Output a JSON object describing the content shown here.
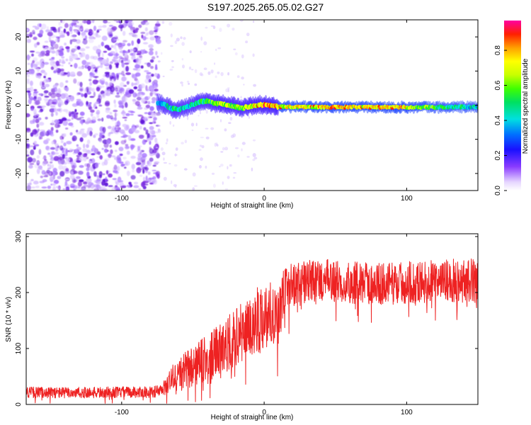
{
  "figure": {
    "title": "S197.2025.265.05.02.G27"
  },
  "colors": {
    "snr_line": "#ee2222",
    "frame": "#000000",
    "noise_dots": "#7a2ae0"
  },
  "chart_data": [
    {
      "type": "heatmap",
      "name": "spectrogram",
      "title": "S197.2025.265.05.02.G27",
      "xlabel": "Height of straight line (km)",
      "ylabel": "Frequency (Hz)",
      "xlim": [
        -167,
        150
      ],
      "ylim": [
        -25,
        25
      ],
      "xticks": [
        -100,
        0,
        100
      ],
      "xtick_labels": [
        "-100",
        "0",
        "100"
      ],
      "yticks": [
        -20,
        -10,
        0,
        10,
        20
      ],
      "ytick_labels": [
        "-20",
        "-10",
        "0",
        "10",
        "20"
      ],
      "colorbar": {
        "label": "Normalized spectral amplitude",
        "range": [
          0,
          0.97
        ],
        "ticks": [
          0.0,
          0.2,
          0.4,
          0.6,
          0.8
        ],
        "tick_labels": [
          "0.0",
          "0.2",
          "0.4",
          "0.6",
          "0.8"
        ]
      },
      "noise_region": {
        "x_from": -167,
        "x_to": -76,
        "freq_from": -25,
        "freq_to": 25
      },
      "signal_track": {
        "description": "dominant frequency ridge",
        "x": [
          -75,
          -70,
          -65,
          -60,
          -55,
          -50,
          -45,
          -40,
          -35,
          -30,
          -25,
          -20,
          -15,
          -10,
          -5,
          0,
          5,
          10,
          20,
          30,
          40,
          50,
          60,
          70,
          80,
          90,
          100,
          110,
          120,
          130,
          140,
          150
        ],
        "freq": [
          0.5,
          0.2,
          -1.0,
          -1.3,
          -0.6,
          0.2,
          1.0,
          1.2,
          0.6,
          0.4,
          0.2,
          -0.5,
          -0.8,
          -0.3,
          0.1,
          0.1,
          -0.1,
          -0.5,
          -0.5,
          -0.5,
          -0.6,
          -0.6,
          -0.6,
          -0.6,
          -0.6,
          -0.6,
          -0.6,
          -0.6,
          -0.6,
          -0.6,
          -0.5,
          -0.5
        ],
        "amplitude": [
          0.45,
          0.5,
          0.55,
          0.55,
          0.5,
          0.55,
          0.6,
          0.6,
          0.7,
          0.8,
          0.75,
          0.7,
          0.75,
          0.8,
          0.85,
          0.95,
          0.9,
          0.85,
          0.8,
          0.85,
          0.9,
          0.9,
          0.88,
          0.85,
          0.9,
          0.92,
          0.88,
          0.7,
          0.65,
          0.6,
          0.55,
          0.5
        ]
      }
    },
    {
      "type": "line",
      "name": "snr",
      "xlabel": "Height of straight line (km)",
      "ylabel": "SNR (10 * v/v)",
      "xlim": [
        -167,
        150
      ],
      "ylim": [
        0,
        305
      ],
      "xticks": [
        -100,
        0,
        100
      ],
      "xtick_labels": [
        "-100",
        "0",
        "100"
      ],
      "yticks": [
        0,
        100,
        200,
        300
      ],
      "ytick_labels": [
        "0",
        "100",
        "200",
        "300"
      ],
      "trend": {
        "x": [
          -167,
          -140,
          -120,
          -100,
          -80,
          -72,
          -65,
          -55,
          -45,
          -35,
          -25,
          -15,
          -5,
          5,
          12,
          15,
          25,
          40,
          60,
          80,
          100,
          120,
          150
        ],
        "mean": [
          22,
          21,
          21,
          22,
          22,
          24,
          45,
          60,
          75,
          90,
          110,
          130,
          150,
          165,
          175,
          210,
          218,
          222,
          218,
          215,
          218,
          220,
          222
        ],
        "spread": [
          10,
          10,
          10,
          10,
          10,
          12,
          25,
          35,
          40,
          45,
          50,
          55,
          60,
          60,
          55,
          40,
          38,
          38,
          38,
          38,
          38,
          38,
          40
        ]
      }
    }
  ]
}
